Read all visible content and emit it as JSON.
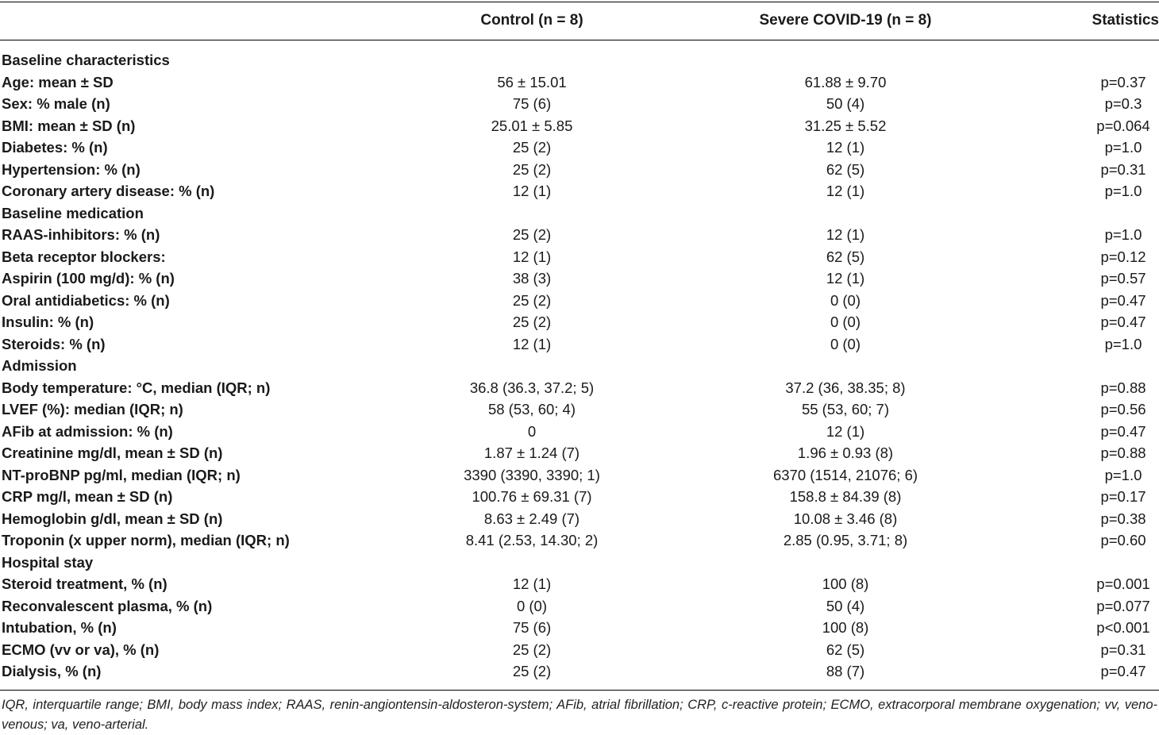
{
  "header": {
    "col_label": "",
    "col_control": "Control (n = 8)",
    "col_severe": "Severe COVID-19 (n = 8)",
    "col_stats": "Statistics"
  },
  "rows": [
    {
      "type": "section",
      "label": "Baseline characteristics"
    },
    {
      "type": "data",
      "label": "Age: mean ± SD",
      "control": "56 ± 15.01",
      "severe": "61.88 ± 9.70",
      "stats": "p=0.37"
    },
    {
      "type": "data",
      "label": "Sex: % male (n)",
      "control": "75 (6)",
      "severe": "50 (4)",
      "stats": "p=0.3"
    },
    {
      "type": "data",
      "label": "BMI: mean ± SD (n)",
      "control": "25.01 ± 5.85",
      "severe": "31.25 ± 5.52",
      "stats": "p=0.064"
    },
    {
      "type": "data",
      "label": "Diabetes: % (n)",
      "control": "25 (2)",
      "severe": "12 (1)",
      "stats": "p=1.0"
    },
    {
      "type": "data",
      "label": "Hypertension: % (n)",
      "control": "25 (2)",
      "severe": "62 (5)",
      "stats": "p=0.31"
    },
    {
      "type": "data",
      "label": "Coronary artery disease: % (n)",
      "control": "12 (1)",
      "severe": "12 (1)",
      "stats": "p=1.0"
    },
    {
      "type": "section",
      "label": "Baseline medication"
    },
    {
      "type": "data",
      "label": "RAAS-inhibitors: % (n)",
      "control": "25 (2)",
      "severe": "12 (1)",
      "stats": "p=1.0"
    },
    {
      "type": "data",
      "label": "Beta receptor blockers:",
      "control": "12 (1)",
      "severe": "62 (5)",
      "stats": "p=0.12"
    },
    {
      "type": "data",
      "label": "Aspirin (100 mg/d): % (n)",
      "control": "38 (3)",
      "severe": "12 (1)",
      "stats": "p=0.57"
    },
    {
      "type": "data",
      "label": "Oral antidiabetics: % (n)",
      "control": "25 (2)",
      "severe": "0 (0)",
      "stats": "p=0.47"
    },
    {
      "type": "data",
      "label": "Insulin: % (n)",
      "control": "25 (2)",
      "severe": "0 (0)",
      "stats": "p=0.47"
    },
    {
      "type": "data",
      "label": "Steroids: % (n)",
      "control": "12 (1)",
      "severe": "0 (0)",
      "stats": "p=1.0"
    },
    {
      "type": "section",
      "label": "Admission"
    },
    {
      "type": "data",
      "label": "Body temperature: °C, median (IQR; n)",
      "control": "36.8 (36.3, 37.2; 5)",
      "severe": "37.2 (36, 38.35; 8)",
      "stats": "p=0.88"
    },
    {
      "type": "data",
      "label": "LVEF (%): median (IQR; n)",
      "control": "58 (53, 60; 4)",
      "severe": "55 (53, 60; 7)",
      "stats": "p=0.56"
    },
    {
      "type": "data",
      "label": "AFib at admission: % (n)",
      "control": "0",
      "severe": "12 (1)",
      "stats": "p=0.47"
    },
    {
      "type": "data",
      "label": "Creatinine mg/dl, mean ± SD (n)",
      "control": "1.87 ± 1.24 (7)",
      "severe": "1.96 ± 0.93 (8)",
      "stats": "p=0.88"
    },
    {
      "type": "data",
      "label": "NT-proBNP pg/ml, median (IQR; n)",
      "control": "3390 (3390, 3390; 1)",
      "severe": "6370 (1514, 21076; 6)",
      "stats": "p=1.0"
    },
    {
      "type": "data",
      "label": "CRP mg/l, mean ± SD (n)",
      "control": "100.76 ± 69.31 (7)",
      "severe": "158.8 ± 84.39 (8)",
      "stats": "p=0.17"
    },
    {
      "type": "data",
      "label": "Hemoglobin g/dl, mean ± SD (n)",
      "control": "8.63 ± 2.49 (7)",
      "severe": "10.08 ± 3.46 (8)",
      "stats": "p=0.38"
    },
    {
      "type": "data",
      "label": "Troponin (x upper norm), median (IQR; n)",
      "control": "8.41 (2.53, 14.30; 2)",
      "severe": "2.85 (0.95, 3.71; 8)",
      "stats": "p=0.60"
    },
    {
      "type": "section",
      "label": "Hospital stay"
    },
    {
      "type": "data",
      "label": "Steroid treatment, % (n)",
      "control": "12 (1)",
      "severe": "100 (8)",
      "stats": "p=0.001"
    },
    {
      "type": "data",
      "label": "Reconvalescent plasma, % (n)",
      "control": "0 (0)",
      "severe": "50 (4)",
      "stats": "p=0.077"
    },
    {
      "type": "data",
      "label": "Intubation, % (n)",
      "control": "75 (6)",
      "severe": "100 (8)",
      "stats": "p<0.001"
    },
    {
      "type": "data",
      "label": "ECMO (vv or va), % (n)",
      "control": "25 (2)",
      "severe": "62 (5)",
      "stats": "p=0.31"
    },
    {
      "type": "data",
      "label": "Dialysis, % (n)",
      "control": "25 (2)",
      "severe": "88 (7)",
      "stats": "p=0.47"
    }
  ],
  "footnote": "IQR, interquartile range; BMI, body mass index; RAAS, renin-angiontensin-aldosteron-system; AFib, atrial fibrillation; CRP, c-reactive protein; ECMO, extracorporal membrane oxygenation; vv, veno-venous; va, veno-arterial."
}
